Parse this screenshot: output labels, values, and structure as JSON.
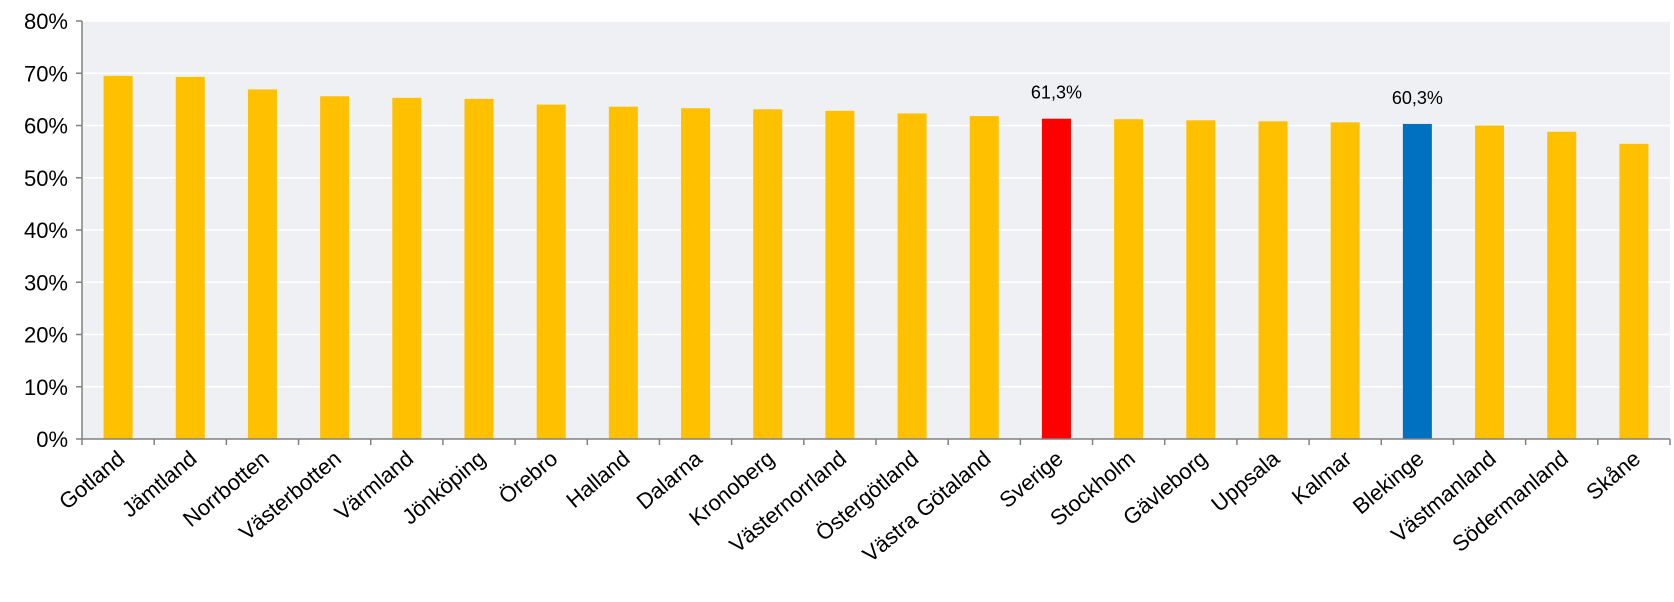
{
  "chart_data": {
    "type": "bar",
    "categories": [
      "Gotland",
      "Jämtland",
      "Norrbotten",
      "Västerbotten",
      "Värmland",
      "Jönköping",
      "Örebro",
      "Halland",
      "Dalarna",
      "Kronoberg",
      "Västernorrland",
      "Östergötland",
      "Västra Götaland",
      "Sverige",
      "Stockholm",
      "Gävleborg",
      "Uppsala",
      "Kalmar",
      "Blekinge",
      "Västmanland",
      "Södermanland",
      "Skåne"
    ],
    "values": [
      69.5,
      69.3,
      66.9,
      65.6,
      65.3,
      65.1,
      64.0,
      63.6,
      63.3,
      63.1,
      62.8,
      62.3,
      61.8,
      61.3,
      61.2,
      61.0,
      60.8,
      60.6,
      60.3,
      60.0,
      58.8,
      56.5
    ],
    "bar_colors": [
      "#FFC000",
      "#FFC000",
      "#FFC000",
      "#FFC000",
      "#FFC000",
      "#FFC000",
      "#FFC000",
      "#FFC000",
      "#FFC000",
      "#FFC000",
      "#FFC000",
      "#FFC000",
      "#FFC000",
      "#FF0000",
      "#FFC000",
      "#FFC000",
      "#FFC000",
      "#FFC000",
      "#0070C0",
      "#FFC000",
      "#FFC000",
      "#FFC000"
    ],
    "data_labels": [
      {
        "category": "Sverige",
        "text": "61,3%"
      },
      {
        "category": "Blekinge",
        "text": "60,3%"
      }
    ],
    "y_ticks": [
      "0%",
      "10%",
      "20%",
      "30%",
      "40%",
      "50%",
      "60%",
      "70%",
      "80%"
    ],
    "ylim": [
      0,
      80
    ],
    "grid": true,
    "plot_background": "#EEF0F3"
  }
}
